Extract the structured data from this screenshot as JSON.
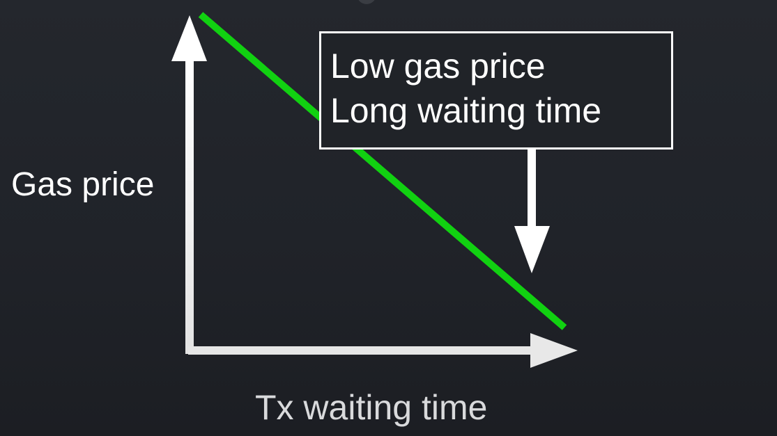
{
  "diagram": {
    "y_axis_label": "Gas price",
    "x_axis_label": "Tx waiting time",
    "callout": {
      "line1": "Low gas price",
      "line2": "Long waiting time"
    },
    "colors": {
      "background": "#202329",
      "axes": "#ffffff",
      "trend_line": "#11d111",
      "text": "#ffffff"
    }
  }
}
